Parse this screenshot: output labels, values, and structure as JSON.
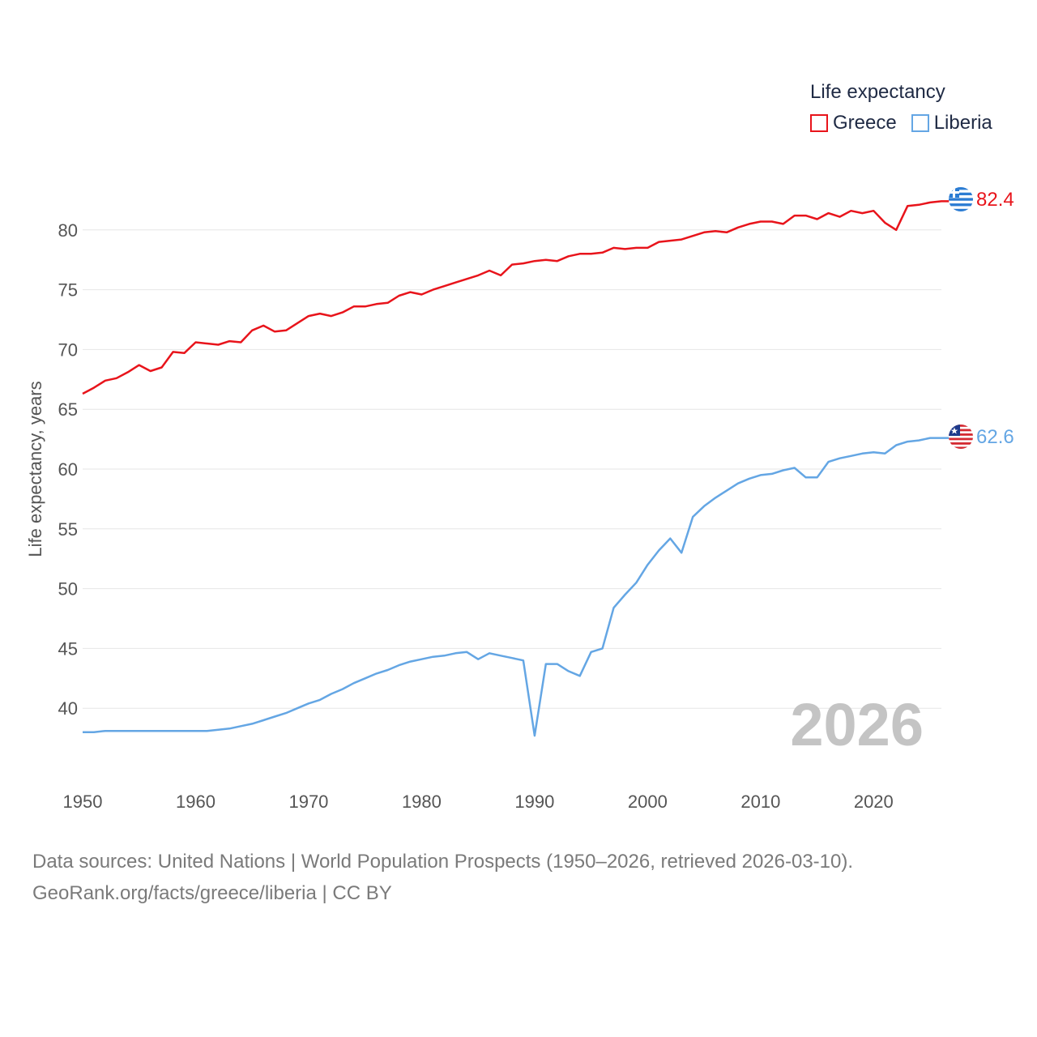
{
  "legend": {
    "title": "Life expectancy",
    "items": [
      {
        "name": "Greece",
        "color": "#e8141b"
      },
      {
        "name": "Liberia",
        "color": "#64a6e4"
      }
    ]
  },
  "year_watermark": "2026",
  "source": {
    "line1": "Data sources: United Nations | World Population Prospects (1950–2026, retrieved 2026-03-10).",
    "line2": "GeoRank.org/facts/greece/liberia | CC BY"
  },
  "chart_data": {
    "type": "line",
    "title": "Life expectancy",
    "xlabel": "",
    "ylabel": "Life expectancy, years",
    "xlim": [
      1950,
      2026
    ],
    "ylim": [
      35,
      85
    ],
    "x_ticks": [
      1950,
      1960,
      1970,
      1980,
      1990,
      2000,
      2010,
      2020
    ],
    "y_ticks": [
      40,
      45,
      50,
      55,
      60,
      65,
      70,
      75,
      80
    ],
    "grid": true,
    "legend_position": "top-right",
    "end_labels": [
      {
        "series": "Greece",
        "value": "82.4",
        "flag": "greece-flag"
      },
      {
        "series": "Liberia",
        "value": "62.6",
        "flag": "liberia-flag"
      }
    ],
    "x": [
      1950,
      1951,
      1952,
      1953,
      1954,
      1955,
      1956,
      1957,
      1958,
      1959,
      1960,
      1961,
      1962,
      1963,
      1964,
      1965,
      1966,
      1967,
      1968,
      1969,
      1970,
      1971,
      1972,
      1973,
      1974,
      1975,
      1976,
      1977,
      1978,
      1979,
      1980,
      1981,
      1982,
      1983,
      1984,
      1985,
      1986,
      1987,
      1988,
      1989,
      1990,
      1991,
      1992,
      1993,
      1994,
      1995,
      1996,
      1997,
      1998,
      1999,
      2000,
      2001,
      2002,
      2003,
      2004,
      2005,
      2006,
      2007,
      2008,
      2009,
      2010,
      2011,
      2012,
      2013,
      2014,
      2015,
      2016,
      2017,
      2018,
      2019,
      2020,
      2021,
      2022,
      2023,
      2024,
      2025,
      2026
    ],
    "series": [
      {
        "name": "Greece",
        "color": "#e8141b",
        "values": [
          66.3,
          66.8,
          67.4,
          67.6,
          68.1,
          68.7,
          68.2,
          68.5,
          69.8,
          69.7,
          70.6,
          70.5,
          70.4,
          70.7,
          70.6,
          71.6,
          72.0,
          71.5,
          71.6,
          72.2,
          72.8,
          73.0,
          72.8,
          73.1,
          73.6,
          73.6,
          73.8,
          73.9,
          74.5,
          74.8,
          74.6,
          75.0,
          75.3,
          75.6,
          75.9,
          76.2,
          76.6,
          76.2,
          77.1,
          77.2,
          77.4,
          77.5,
          77.4,
          77.8,
          78.0,
          78.0,
          78.1,
          78.5,
          78.4,
          78.5,
          78.5,
          79.0,
          79.1,
          79.2,
          79.5,
          79.8,
          79.9,
          79.8,
          80.2,
          80.5,
          80.7,
          80.7,
          80.5,
          81.2,
          81.2,
          80.9,
          81.4,
          81.1,
          81.6,
          81.4,
          81.6,
          80.6,
          80.0,
          82.0,
          82.1,
          82.3,
          82.4
        ]
      },
      {
        "name": "Liberia",
        "color": "#64a6e4",
        "values": [
          38.0,
          38.0,
          38.1,
          38.1,
          38.1,
          38.1,
          38.1,
          38.1,
          38.1,
          38.1,
          38.1,
          38.1,
          38.2,
          38.3,
          38.5,
          38.7,
          39.0,
          39.3,
          39.6,
          40.0,
          40.4,
          40.7,
          41.2,
          41.6,
          42.1,
          42.5,
          42.9,
          43.2,
          43.6,
          43.9,
          44.1,
          44.3,
          44.4,
          44.6,
          44.7,
          44.1,
          44.6,
          44.4,
          44.2,
          44.0,
          37.7,
          43.7,
          43.7,
          43.1,
          42.7,
          44.7,
          45.0,
          48.4,
          49.5,
          50.5,
          52.0,
          53.2,
          54.2,
          53.0,
          56.0,
          56.9,
          57.6,
          58.2,
          58.8,
          59.2,
          59.5,
          59.6,
          59.9,
          60.1,
          59.3,
          59.3,
          60.6,
          60.9,
          61.1,
          61.3,
          61.4,
          61.3,
          62.0,
          62.3,
          62.4,
          62.6,
          62.6
        ]
      }
    ]
  }
}
